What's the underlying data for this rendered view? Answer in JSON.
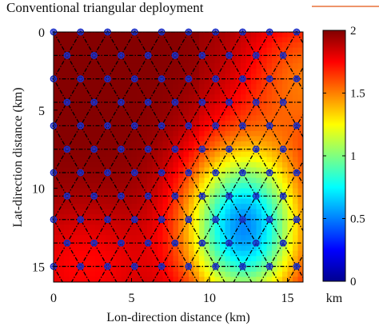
{
  "title": "Conventional triangular deployment",
  "accent_line_color": "#e8703a",
  "chart_data": {
    "type": "heatmap",
    "title": "Conventional triangular deployment",
    "xlabel": "Lon-direction distance (km)",
    "ylabel": "Lat-direction distance (km)",
    "xlim": [
      0,
      16
    ],
    "ylim": [
      0,
      16
    ],
    "y_axis_reversed": true,
    "xticks": [
      0,
      5,
      10,
      15
    ],
    "yticks": [
      0,
      5,
      10,
      15
    ],
    "colormap": "jet",
    "colorbar": {
      "range": [
        0,
        2
      ],
      "ticks": [
        0,
        0.5,
        1,
        1.5,
        2
      ],
      "unit_label": "km"
    },
    "field_description_points": [
      {
        "x": 4,
        "y": 4,
        "value": 1.95
      },
      {
        "x": 12,
        "y": 9,
        "value": 0.85
      },
      {
        "x": 12.5,
        "y": 14,
        "value": 0.6
      },
      {
        "x": 15.5,
        "y": 1,
        "value": 1.3
      },
      {
        "x": 2,
        "y": 14,
        "value": 1.7
      }
    ],
    "node_spacing_km": 1.732,
    "row_spacing_km": 1.5,
    "marker": "blue circles with star",
    "mesh_style": "black dash-dot triangular lattice"
  }
}
